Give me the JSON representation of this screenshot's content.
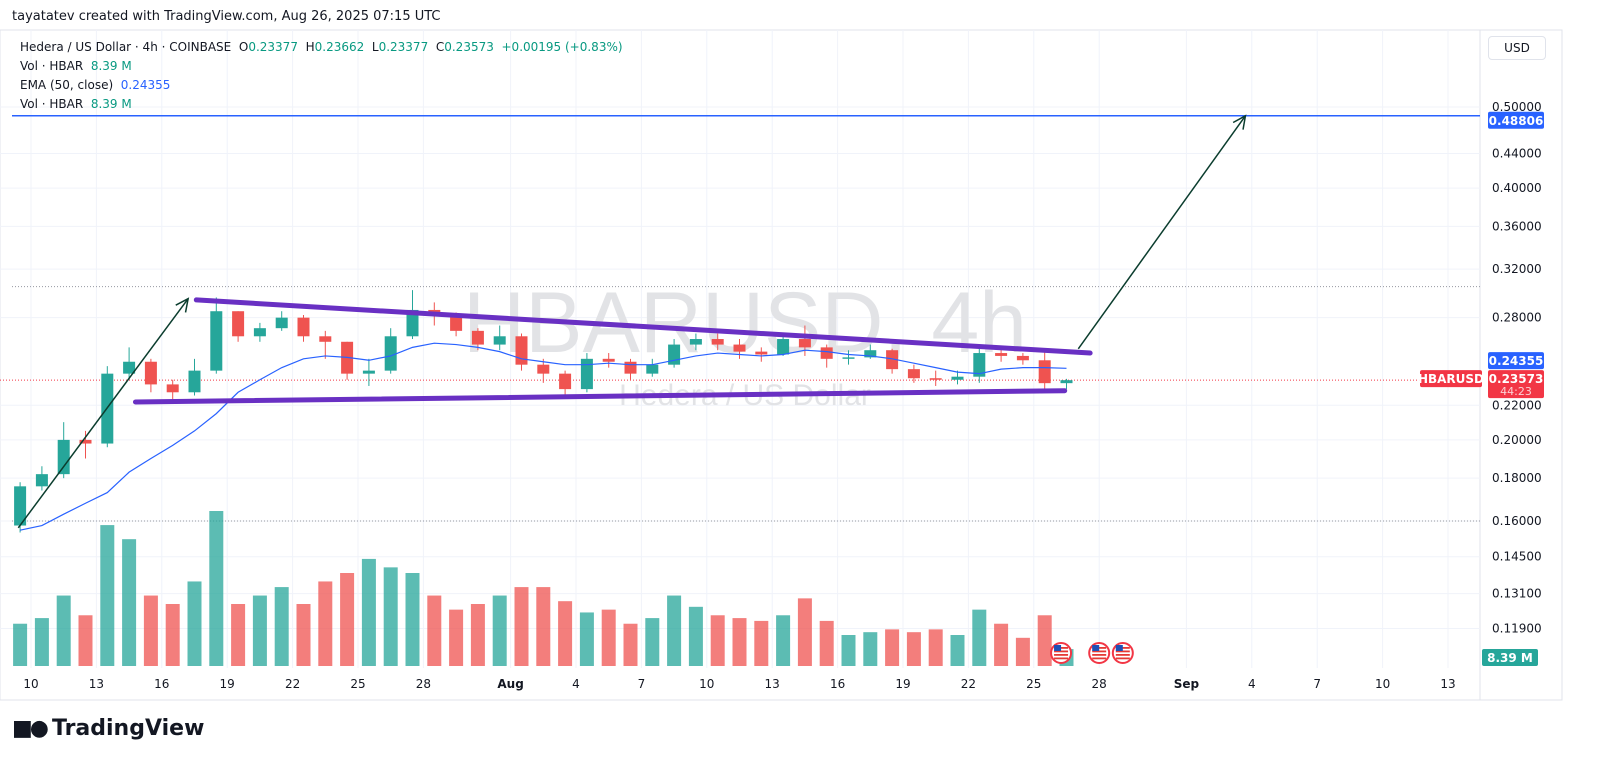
{
  "credit": "tayatatev created with TradingView.com, Aug 26, 2025 07:15 UTC",
  "legend": {
    "symbol": "Hedera / US Dollar · 4h · COINBASE",
    "o_label": "O",
    "o": "0.23377",
    "h_label": "H",
    "h": "0.23662",
    "l_label": "L",
    "l": "0.23377",
    "c_label": "C",
    "c": "0.23573",
    "change": "+0.00195 (+0.83%)",
    "vol1_label": "Vol · HBAR",
    "vol1": "8.39 M",
    "ema_label": "EMA (50, close)",
    "ema": "0.24355",
    "vol2_label": "Vol · HBAR",
    "vol2": "8.39 M"
  },
  "currency_button": "USD",
  "watermark": {
    "title": "HBARUSD, 4h",
    "subtitle": "Hedera / US Dollar"
  },
  "logo": {
    "text": "TradingView",
    "mark": "17"
  },
  "colors": {
    "up": "#26a69a",
    "down": "#ef5350",
    "ema": "#2962ff",
    "trendline": "#6930c3",
    "arrow": "#0b3d2e",
    "target": "#2962ff",
    "last_price": "#f23645",
    "volume_badge": "#26a69a"
  },
  "chart_data": {
    "type": "candlestick",
    "symbol": "HBARUSD",
    "interval": "4h",
    "y_scale": "log",
    "ylim": [
      0.11,
      0.52
    ],
    "grid": true,
    "y_ticks": [
      "0.50000",
      "0.44000",
      "0.40000",
      "0.36000",
      "0.32000",
      "0.28000",
      "0.22000",
      "0.20000",
      "0.18000",
      "0.16000",
      "0.14500",
      "0.13100",
      "0.11900"
    ],
    "x_ticks": [
      {
        "label": "10",
        "date": "2025-07-10"
      },
      {
        "label": "13",
        "date": "2025-07-13"
      },
      {
        "label": "16",
        "date": "2025-07-16"
      },
      {
        "label": "19",
        "date": "2025-07-19"
      },
      {
        "label": "22",
        "date": "2025-07-22"
      },
      {
        "label": "25",
        "date": "2025-07-25"
      },
      {
        "label": "28",
        "date": "2025-07-28"
      },
      {
        "label": "Aug",
        "date": "2025-08-01",
        "bold": true
      },
      {
        "label": "4",
        "date": "2025-08-04"
      },
      {
        "label": "7",
        "date": "2025-08-07"
      },
      {
        "label": "10",
        "date": "2025-08-10"
      },
      {
        "label": "13",
        "date": "2025-08-13"
      },
      {
        "label": "16",
        "date": "2025-08-16"
      },
      {
        "label": "19",
        "date": "2025-08-19"
      },
      {
        "label": "22",
        "date": "2025-08-22"
      },
      {
        "label": "25",
        "date": "2025-08-25"
      },
      {
        "label": "28",
        "date": "2025-08-28"
      },
      {
        "label": "Sep",
        "date": "2025-09-01",
        "bold": true
      },
      {
        "label": "4",
        "date": "2025-09-04"
      },
      {
        "label": "7",
        "date": "2025-09-07"
      },
      {
        "label": "10",
        "date": "2025-09-10"
      },
      {
        "label": "13",
        "date": "2025-09-13"
      }
    ],
    "candles": [
      {
        "d": "2025-07-09",
        "o": 0.158,
        "h": 0.178,
        "l": 0.155,
        "c": 0.176,
        "v": 150
      },
      {
        "d": "2025-07-10",
        "o": 0.176,
        "h": 0.186,
        "l": 0.174,
        "c": 0.182,
        "v": 170
      },
      {
        "d": "2025-07-11",
        "o": 0.182,
        "h": 0.21,
        "l": 0.18,
        "c": 0.2,
        "v": 250
      },
      {
        "d": "2025-07-12",
        "o": 0.2,
        "h": 0.205,
        "l": 0.19,
        "c": 0.198,
        "v": 180
      },
      {
        "d": "2025-07-13",
        "o": 0.198,
        "h": 0.245,
        "l": 0.196,
        "c": 0.24,
        "v": 500
      },
      {
        "d": "2025-07-14",
        "o": 0.24,
        "h": 0.258,
        "l": 0.236,
        "c": 0.248,
        "v": 450
      },
      {
        "d": "2025-07-15",
        "o": 0.248,
        "h": 0.25,
        "l": 0.228,
        "c": 0.233,
        "v": 250
      },
      {
        "d": "2025-07-16",
        "o": 0.233,
        "h": 0.236,
        "l": 0.222,
        "c": 0.228,
        "v": 220
      },
      {
        "d": "2025-07-17",
        "o": 0.228,
        "h": 0.25,
        "l": 0.226,
        "c": 0.242,
        "v": 300
      },
      {
        "d": "2025-07-18",
        "o": 0.242,
        "h": 0.296,
        "l": 0.24,
        "c": 0.285,
        "v": 550
      },
      {
        "d": "2025-07-19",
        "o": 0.285,
        "h": 0.285,
        "l": 0.262,
        "c": 0.266,
        "v": 220
      },
      {
        "d": "2025-07-20",
        "o": 0.266,
        "h": 0.276,
        "l": 0.262,
        "c": 0.272,
        "v": 250
      },
      {
        "d": "2025-07-21",
        "o": 0.272,
        "h": 0.285,
        "l": 0.27,
        "c": 0.28,
        "v": 280
      },
      {
        "d": "2025-07-22",
        "o": 0.28,
        "h": 0.282,
        "l": 0.262,
        "c": 0.266,
        "v": 220
      },
      {
        "d": "2025-07-23",
        "o": 0.266,
        "h": 0.27,
        "l": 0.25,
        "c": 0.262,
        "v": 300
      },
      {
        "d": "2025-07-24",
        "o": 0.262,
        "h": 0.262,
        "l": 0.236,
        "c": 0.24,
        "v": 330
      },
      {
        "d": "2025-07-25",
        "o": 0.24,
        "h": 0.25,
        "l": 0.232,
        "c": 0.242,
        "v": 380
      },
      {
        "d": "2025-07-26",
        "o": 0.242,
        "h": 0.272,
        "l": 0.24,
        "c": 0.266,
        "v": 350
      },
      {
        "d": "2025-07-27",
        "o": 0.266,
        "h": 0.302,
        "l": 0.264,
        "c": 0.286,
        "v": 330
      },
      {
        "d": "2025-07-28",
        "o": 0.286,
        "h": 0.292,
        "l": 0.274,
        "c": 0.282,
        "v": 250
      },
      {
        "d": "2025-07-29",
        "o": 0.282,
        "h": 0.284,
        "l": 0.266,
        "c": 0.27,
        "v": 200
      },
      {
        "d": "2025-07-30",
        "o": 0.27,
        "h": 0.272,
        "l": 0.256,
        "c": 0.26,
        "v": 220
      },
      {
        "d": "2025-07-31",
        "o": 0.26,
        "h": 0.274,
        "l": 0.256,
        "c": 0.266,
        "v": 250
      },
      {
        "d": "2025-08-01",
        "o": 0.266,
        "h": 0.268,
        "l": 0.242,
        "c": 0.246,
        "v": 280
      },
      {
        "d": "2025-08-02",
        "o": 0.246,
        "h": 0.25,
        "l": 0.234,
        "c": 0.24,
        "v": 280
      },
      {
        "d": "2025-08-03",
        "o": 0.24,
        "h": 0.242,
        "l": 0.224,
        "c": 0.23,
        "v": 230
      },
      {
        "d": "2025-08-04",
        "o": 0.23,
        "h": 0.254,
        "l": 0.228,
        "c": 0.25,
        "v": 190
      },
      {
        "d": "2025-08-05",
        "o": 0.25,
        "h": 0.254,
        "l": 0.244,
        "c": 0.248,
        "v": 200
      },
      {
        "d": "2025-08-06",
        "o": 0.248,
        "h": 0.25,
        "l": 0.236,
        "c": 0.24,
        "v": 150
      },
      {
        "d": "2025-08-07",
        "o": 0.24,
        "h": 0.25,
        "l": 0.238,
        "c": 0.246,
        "v": 170
      },
      {
        "d": "2025-08-08",
        "o": 0.246,
        "h": 0.264,
        "l": 0.244,
        "c": 0.26,
        "v": 250
      },
      {
        "d": "2025-08-09",
        "o": 0.26,
        "h": 0.268,
        "l": 0.256,
        "c": 0.264,
        "v": 210
      },
      {
        "d": "2025-08-10",
        "o": 0.264,
        "h": 0.268,
        "l": 0.256,
        "c": 0.26,
        "v": 180
      },
      {
        "d": "2025-08-11",
        "o": 0.26,
        "h": 0.264,
        "l": 0.25,
        "c": 0.255,
        "v": 170
      },
      {
        "d": "2025-08-12",
        "o": 0.255,
        "h": 0.258,
        "l": 0.248,
        "c": 0.253,
        "v": 160
      },
      {
        "d": "2025-08-13",
        "o": 0.253,
        "h": 0.268,
        "l": 0.252,
        "c": 0.264,
        "v": 180
      },
      {
        "d": "2025-08-14",
        "o": 0.264,
        "h": 0.274,
        "l": 0.252,
        "c": 0.258,
        "v": 240
      },
      {
        "d": "2025-08-15",
        "o": 0.258,
        "h": 0.26,
        "l": 0.244,
        "c": 0.25,
        "v": 160
      },
      {
        "d": "2025-08-16",
        "o": 0.25,
        "h": 0.256,
        "l": 0.246,
        "c": 0.251,
        "v": 110
      },
      {
        "d": "2025-08-17",
        "o": 0.251,
        "h": 0.26,
        "l": 0.25,
        "c": 0.256,
        "v": 120
      },
      {
        "d": "2025-08-18",
        "o": 0.256,
        "h": 0.257,
        "l": 0.24,
        "c": 0.243,
        "v": 130
      },
      {
        "d": "2025-08-19",
        "o": 0.243,
        "h": 0.246,
        "l": 0.234,
        "c": 0.237,
        "v": 120
      },
      {
        "d": "2025-08-20",
        "o": 0.237,
        "h": 0.242,
        "l": 0.232,
        "c": 0.236,
        "v": 130
      },
      {
        "d": "2025-08-21",
        "o": 0.236,
        "h": 0.242,
        "l": 0.233,
        "c": 0.238,
        "v": 110
      },
      {
        "d": "2025-08-22",
        "o": 0.238,
        "h": 0.258,
        "l": 0.234,
        "c": 0.254,
        "v": 200
      },
      {
        "d": "2025-08-23",
        "o": 0.254,
        "h": 0.258,
        "l": 0.248,
        "c": 0.252,
        "v": 150
      },
      {
        "d": "2025-08-24",
        "o": 0.252,
        "h": 0.254,
        "l": 0.246,
        "c": 0.249,
        "v": 100
      },
      {
        "d": "2025-08-25",
        "o": 0.249,
        "h": 0.256,
        "l": 0.23,
        "c": 0.2338,
        "v": 180
      },
      {
        "d": "2025-08-26",
        "o": 0.2338,
        "h": 0.2366,
        "l": 0.23,
        "c": 0.23573,
        "v": 60
      }
    ],
    "ema50": [
      0.156,
      0.158,
      0.163,
      0.168,
      0.173,
      0.183,
      0.19,
      0.197,
      0.205,
      0.215,
      0.228,
      0.236,
      0.244,
      0.25,
      0.252,
      0.251,
      0.249,
      0.252,
      0.258,
      0.261,
      0.26,
      0.258,
      0.255,
      0.25,
      0.248,
      0.246,
      0.246,
      0.247,
      0.246,
      0.246,
      0.249,
      0.252,
      0.254,
      0.253,
      0.252,
      0.253,
      0.256,
      0.255,
      0.253,
      0.252,
      0.25,
      0.247,
      0.244,
      0.241,
      0.24,
      0.243,
      0.244,
      0.244,
      0.24355
    ],
    "drawings": {
      "upper_trendline": [
        {
          "date": "2025-07-17T14:00",
          "price": 0.294
        },
        {
          "date": "2025-08-27T14:00",
          "price": 0.254
        }
      ],
      "lower_trendline": [
        {
          "date": "2025-07-14T19:00",
          "price": 0.222
        },
        {
          "date": "2025-08-26T10:00",
          "price": 0.229
        }
      ],
      "arrow_1": [
        {
          "date": "2025-07-09T10:00",
          "price": 0.157
        },
        {
          "date": "2025-07-17T05:00",
          "price": 0.295
        }
      ],
      "arrow_2": [
        {
          "date": "2025-08-27T01:00",
          "price": 0.257
        },
        {
          "date": "2025-09-03T17:00",
          "price": 0.48806
        }
      ],
      "target_line_price": 0.48806,
      "high_dotted_price": 0.305,
      "low_dotted_price": 0.16
    },
    "labels": {
      "target": "0.48806",
      "ema": "0.24355",
      "symbol_tag": "HBARUSD",
      "last_price": "0.23573",
      "countdown": "44:23",
      "volume": "8.39 M"
    },
    "events": [
      "us-flag-icon",
      "us-flag-icon",
      "us-flag-icon"
    ]
  }
}
